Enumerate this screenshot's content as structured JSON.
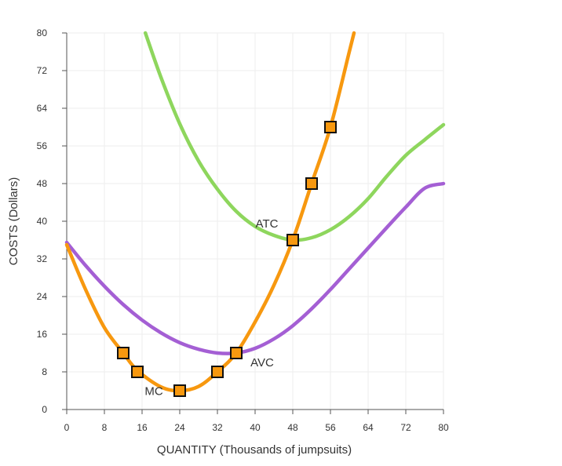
{
  "chart_data": {
    "type": "line",
    "title": "",
    "xlabel": "QUANTITY (Thousands of jumpsuits)",
    "ylabel": "COSTS (Dollars)",
    "xlim": [
      0,
      80
    ],
    "ylim": [
      0,
      80
    ],
    "x_ticks": [
      0,
      8,
      16,
      24,
      32,
      40,
      48,
      56,
      64,
      72,
      80
    ],
    "y_ticks": [
      0,
      8,
      16,
      24,
      32,
      40,
      48,
      56,
      64,
      72,
      80
    ],
    "grid": true,
    "series": [
      {
        "name": "ATC",
        "color": "#8ed65d",
        "points": [
          [
            16.7,
            80
          ],
          [
            20,
            70.6
          ],
          [
            24,
            60.7
          ],
          [
            28,
            52.8
          ],
          [
            32,
            46.8
          ],
          [
            36,
            42.1
          ],
          [
            40,
            38.9
          ],
          [
            44,
            37.0
          ],
          [
            48,
            36.0
          ],
          [
            52,
            36.5
          ],
          [
            56,
            38.2
          ],
          [
            60,
            41.0
          ],
          [
            64,
            44.8
          ],
          [
            68,
            49.6
          ],
          [
            72,
            54.0
          ],
          [
            76,
            57.3
          ],
          [
            80,
            60.5
          ]
        ]
      },
      {
        "name": "AVC",
        "color": "#a45fd4",
        "points": [
          [
            0,
            35.5
          ],
          [
            4,
            30.6
          ],
          [
            8,
            26.2
          ],
          [
            12,
            22.3
          ],
          [
            16,
            19.0
          ],
          [
            20,
            16.3
          ],
          [
            24,
            14.2
          ],
          [
            28,
            12.8
          ],
          [
            32,
            12.0
          ],
          [
            36,
            12.0
          ],
          [
            40,
            13.0
          ],
          [
            44,
            15.0
          ],
          [
            48,
            17.8
          ],
          [
            52,
            21.4
          ],
          [
            56,
            25.5
          ],
          [
            60,
            29.9
          ],
          [
            64,
            34.3
          ],
          [
            68,
            38.7
          ],
          [
            72,
            43.0
          ],
          [
            76,
            47.0
          ],
          [
            80,
            48.0
          ]
        ]
      },
      {
        "name": "MC",
        "color": "#f7980f",
        "points": [
          [
            0,
            35
          ],
          [
            4,
            25.5
          ],
          [
            8,
            17.4
          ],
          [
            12,
            12
          ],
          [
            15,
            8.3
          ],
          [
            20,
            4.8
          ],
          [
            24,
            4
          ],
          [
            28,
            4.9
          ],
          [
            32,
            8
          ],
          [
            36,
            12
          ],
          [
            40,
            18.6
          ],
          [
            44,
            26.4
          ],
          [
            48,
            36
          ],
          [
            52,
            48
          ],
          [
            56,
            60
          ],
          [
            60,
            76
          ],
          [
            61,
            80
          ]
        ],
        "markers": [
          [
            12,
            12
          ],
          [
            15,
            8
          ],
          [
            24,
            4
          ],
          [
            32,
            8
          ],
          [
            36,
            12
          ],
          [
            48,
            36
          ],
          [
            52,
            48
          ],
          [
            56,
            60
          ]
        ]
      }
    ],
    "annotations": [
      {
        "text": "ATC",
        "x": 42.5,
        "y": 38.7
      },
      {
        "text": "AVC",
        "x": 41.5,
        "y": 9.2
      },
      {
        "text": "MC",
        "x": 18.5,
        "y": 3.1
      }
    ]
  }
}
